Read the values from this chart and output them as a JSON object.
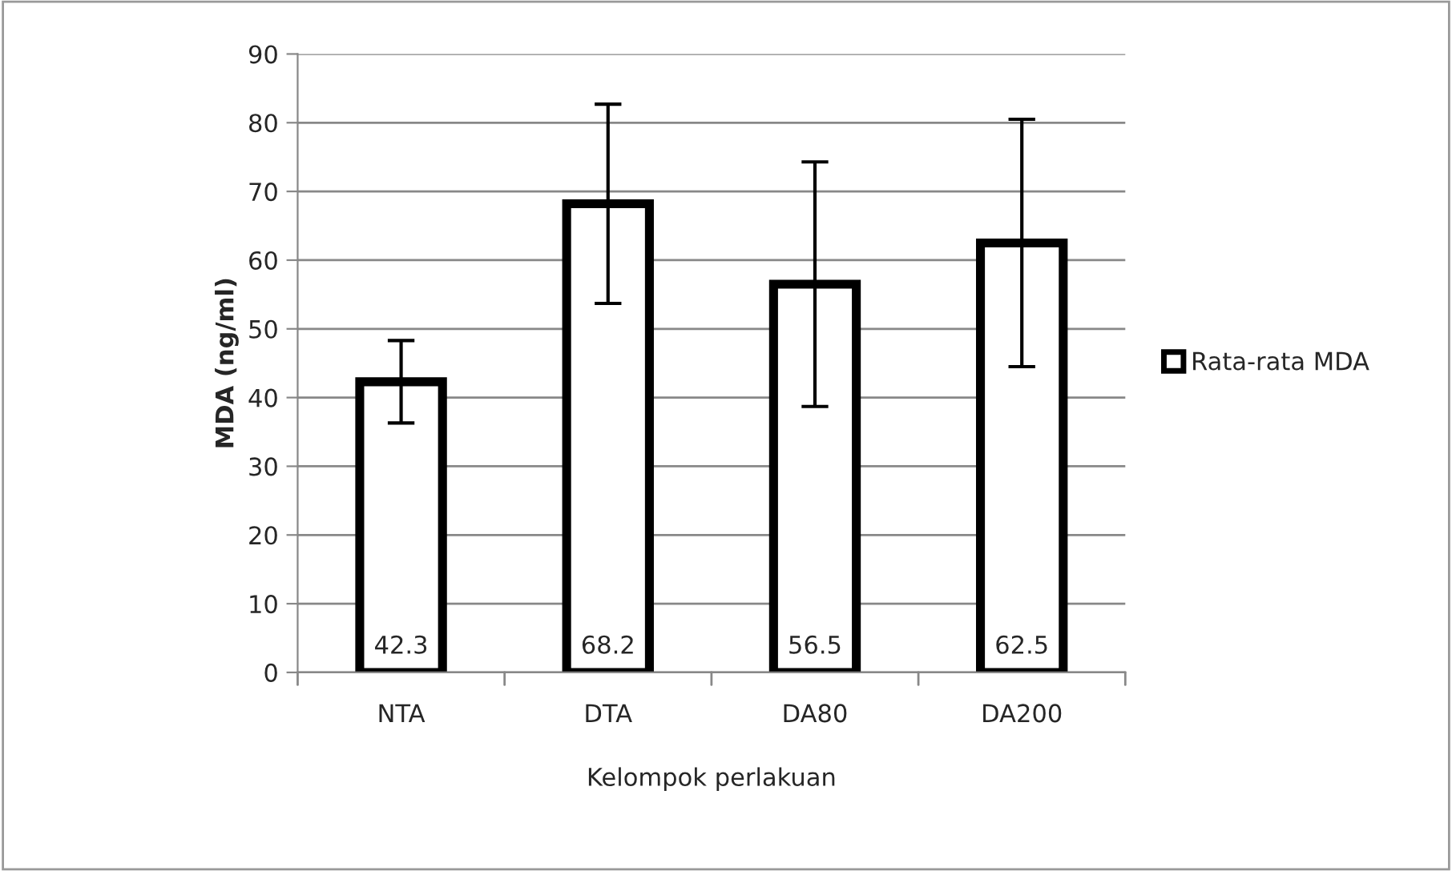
{
  "chart_data": {
    "type": "bar",
    "xlabel": "Kelompok perlakuan",
    "ylabel": "MDA (ng/ml)",
    "categories": [
      "NTA",
      "DTA",
      "DA80",
      "DA200"
    ],
    "series": [
      {
        "name": "Rata-rata MDA",
        "color": "#ffffff",
        "values": [
          42.3,
          68.2,
          56.5,
          62.5
        ],
        "errors": [
          6.0,
          14.5,
          17.8,
          18.0
        ]
      }
    ],
    "ylim": [
      0,
      90
    ],
    "yticks": [
      0,
      10,
      20,
      30,
      40,
      50,
      60,
      70,
      80,
      90
    ],
    "grid": "y",
    "legend": "right",
    "data_labels": true
  }
}
